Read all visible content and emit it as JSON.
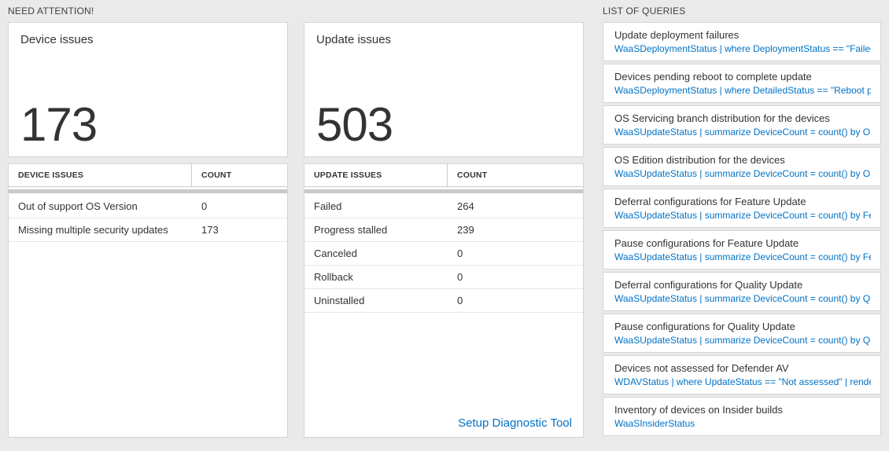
{
  "colors": {
    "link": "#0072c6",
    "background": "#eaeaea",
    "text": "#333333"
  },
  "need_attention": {
    "header": "NEED ATTENTION!",
    "device_card": {
      "title": "Device issues",
      "count": "173",
      "table": {
        "columns": [
          "DEVICE ISSUES",
          "COUNT"
        ],
        "rows": [
          {
            "label": "Out of support OS Version",
            "count": "0"
          },
          {
            "label": "Missing multiple security updates",
            "count": "173"
          }
        ]
      }
    },
    "update_card": {
      "title": "Update issues",
      "count": "503",
      "table": {
        "columns": [
          "UPDATE ISSUES",
          "COUNT"
        ],
        "rows": [
          {
            "label": "Failed",
            "count": "264"
          },
          {
            "label": "Progress stalled",
            "count": "239"
          },
          {
            "label": "Canceled",
            "count": "0"
          },
          {
            "label": "Rollback",
            "count": "0"
          },
          {
            "label": "Uninstalled",
            "count": "0"
          }
        ]
      },
      "footer_link": "Setup Diagnostic Tool"
    }
  },
  "queries": {
    "header": "LIST OF QUERIES",
    "items": [
      {
        "title": "Update deployment failures",
        "query": "WaaSDeploymentStatus | where DeploymentStatus == \"Failed\" |..."
      },
      {
        "title": "Devices pending reboot to complete update",
        "query": "WaaSDeploymentStatus | where DetailedStatus == \"Reboot pend..."
      },
      {
        "title": "OS Servicing branch distribution for the devices",
        "query": "WaaSUpdateStatus | summarize DeviceCount = count() by OSSer..."
      },
      {
        "title": "OS Edition distribution for the devices",
        "query": "WaaSUpdateStatus | summarize DeviceCount = count() by OSEdit..."
      },
      {
        "title": "Deferral configurations for Feature Update",
        "query": "WaaSUpdateStatus | summarize DeviceCount = count() by Featur..."
      },
      {
        "title": "Pause configurations for Feature Update",
        "query": "WaaSUpdateStatus | summarize DeviceCount = count() by Featur..."
      },
      {
        "title": "Deferral configurations for Quality Update",
        "query": "WaaSUpdateStatus | summarize DeviceCount = count() by Qualit..."
      },
      {
        "title": "Pause configurations for Quality Update",
        "query": "WaaSUpdateStatus | summarize DeviceCount = count() by Qualit..."
      },
      {
        "title": "Devices not assessed for Defender AV",
        "query": "WDAVStatus | where UpdateStatus == \"Not assessed\" | render ta..."
      },
      {
        "title": "Inventory of devices on Insider builds",
        "query": "WaaSInsiderStatus"
      }
    ]
  }
}
